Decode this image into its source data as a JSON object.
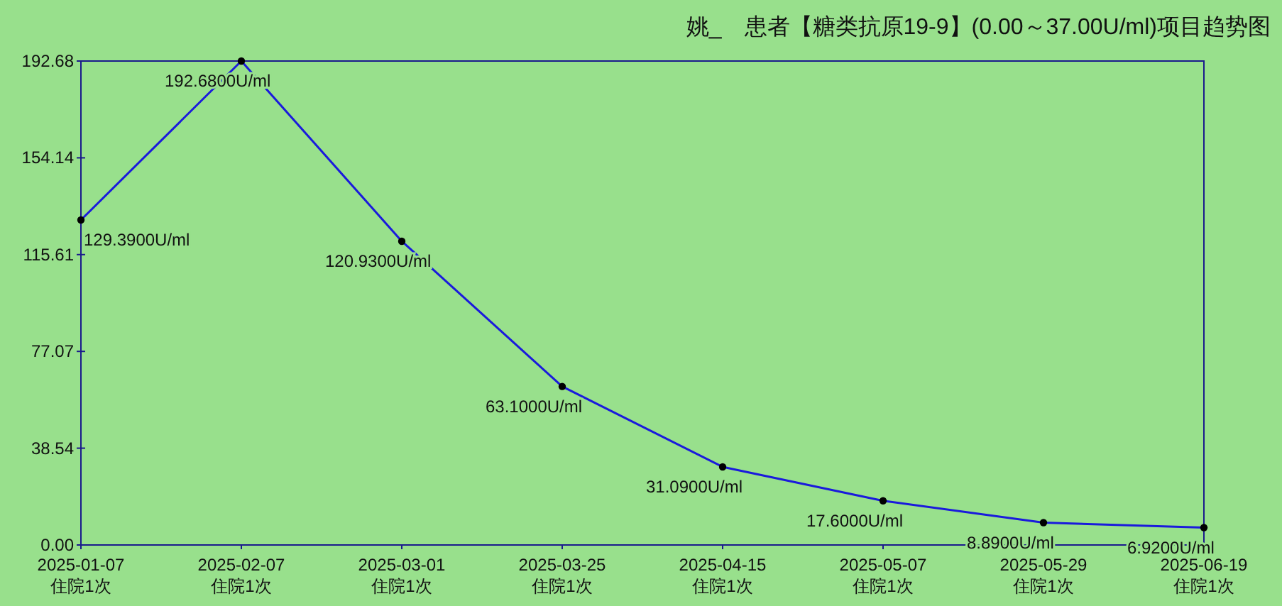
{
  "chart_data": {
    "type": "line",
    "title": "姚_　患者【糖类抗原19-9】(0.00～37.00U/ml)项目趋势图",
    "categories": [
      "2025-01-07\n住院1次",
      "2025-02-07\n住院1次",
      "2025-03-01\n住院1次",
      "2025-03-25\n住院1次",
      "2025-04-15\n住院1次",
      "2025-05-07\n住院1次",
      "2025-05-29\n住院1次",
      "2025-06-19\n住院1次"
    ],
    "values": [
      129.39,
      192.68,
      120.93,
      63.1,
      31.09,
      17.6,
      8.89,
      6.92
    ],
    "value_labels": [
      "129.3900U/ml",
      "192.6800U/ml",
      "120.9300U/ml",
      "63.1000U/ml",
      "31.0900U/ml",
      "17.6000U/ml",
      "8.8900U/ml",
      "6.9200U/ml"
    ],
    "color": "#1a1adc",
    "marker": "circle",
    "ylim": [
      0,
      192.68
    ],
    "yticks": [
      {
        "value": 0,
        "label": "0.00"
      },
      {
        "value": 38.54,
        "label": "38.54"
      },
      {
        "value": 77.07,
        "label": "77.07"
      },
      {
        "value": 115.61,
        "label": "115.61"
      },
      {
        "value": 154.14,
        "label": "154.14"
      },
      {
        "value": 192.68,
        "label": "192.68"
      }
    ]
  }
}
